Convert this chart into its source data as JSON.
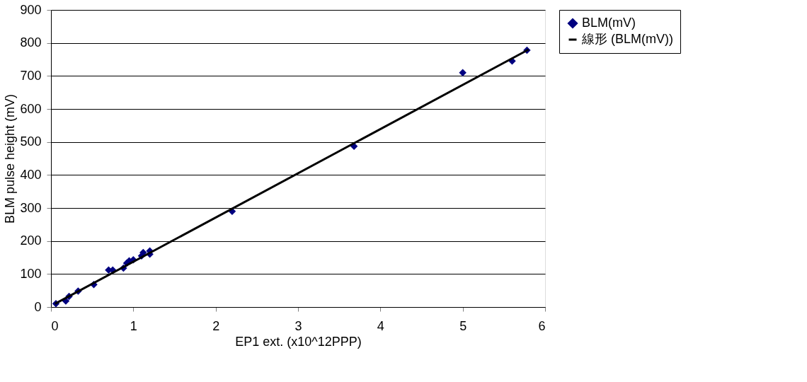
{
  "chart_data": {
    "type": "scatter",
    "xlabel": "EP1 ext. (x10^12PPP)",
    "ylabel": "BLM pulse height (mV)",
    "xlim": [
      0,
      6
    ],
    "xticks": [
      0,
      1,
      2,
      3,
      4,
      5,
      6
    ],
    "ylim": [
      0,
      900
    ],
    "yticks": [
      0,
      100,
      200,
      300,
      400,
      500,
      600,
      700,
      800,
      900
    ],
    "grid": "y",
    "legend": "right",
    "series": [
      {
        "name": "BLM(mV)",
        "color": "#000080",
        "marker": "diamond",
        "x": [
          0.06,
          0.18,
          0.22,
          0.33,
          0.52,
          0.7,
          0.75,
          0.88,
          0.92,
          0.95,
          1.0,
          1.1,
          1.12,
          1.2,
          1.2,
          2.2,
          3.68,
          5.0,
          5.6,
          5.78
        ],
        "values": [
          10,
          18,
          32,
          48,
          68,
          112,
          112,
          118,
          133,
          140,
          143,
          155,
          165,
          160,
          170,
          290,
          487,
          710,
          745,
          778
        ]
      },
      {
        "name": "線形 (BLM(mV))",
        "color": "#000000",
        "type": "line",
        "line_style": "solid",
        "marker": "none",
        "x": [
          0.05,
          5.8
        ],
        "values": [
          10,
          780
        ]
      }
    ]
  }
}
